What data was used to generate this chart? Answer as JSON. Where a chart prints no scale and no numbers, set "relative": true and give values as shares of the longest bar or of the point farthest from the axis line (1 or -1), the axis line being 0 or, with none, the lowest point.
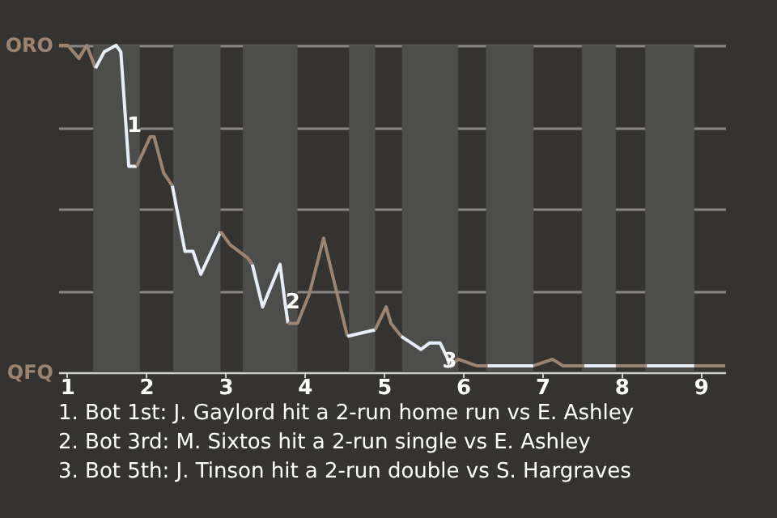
{
  "chart_data": {
    "type": "line",
    "relative": true,
    "xlim": [
      0.89,
      9.31
    ],
    "xticks": [
      1,
      2,
      3,
      4,
      5,
      6,
      7,
      8,
      9
    ],
    "grid": "y",
    "series": [
      {
        "color": "#9c8470",
        "x": [
          0.9,
          1.01,
          1.15,
          1.25,
          1.36
        ],
        "values": [
          1,
          1,
          0.96,
          1,
          0.93
        ]
      },
      {
        "color": "#e8eef8",
        "x": [
          1.36,
          1.47,
          1.62,
          1.68,
          1.78,
          1.88
        ],
        "values": [
          0.93,
          0.98,
          1,
          0.98,
          0.63,
          0.63
        ]
      },
      {
        "color": "#9c8470",
        "x": [
          1.88,
          2.05,
          2.1,
          2.22,
          2.33
        ],
        "values": [
          0.63,
          0.72,
          0.72,
          0.61,
          0.57
        ]
      },
      {
        "color": "#e8eef8",
        "x": [
          2.33,
          2.49,
          2.59,
          2.69,
          2.94
        ],
        "values": [
          0.57,
          0.37,
          0.37,
          0.3,
          0.43
        ]
      },
      {
        "color": "#9c8470",
        "x": [
          2.94,
          3.06,
          3.28,
          3.34
        ],
        "values": [
          0.43,
          0.39,
          0.35,
          0.33
        ]
      },
      {
        "color": "#e8eef8",
        "x": [
          3.34,
          3.47,
          3.69,
          3.76,
          3.79
        ],
        "values": [
          0.33,
          0.2,
          0.33,
          0.2,
          0.15
        ]
      },
      {
        "color": "#9c8470",
        "x": [
          3.79,
          3.91,
          4.06,
          4.24,
          4.54
        ],
        "values": [
          0.15,
          0.15,
          0.24,
          0.41,
          0.11
        ]
      },
      {
        "color": "#e8eef8",
        "x": [
          4.54,
          4.89
        ],
        "values": [
          0.11,
          0.13
        ]
      },
      {
        "color": "#9c8470",
        "x": [
          4.89,
          5.03,
          5.09,
          5.22
        ],
        "values": [
          0.13,
          0.2,
          0.15,
          0.11
        ]
      },
      {
        "color": "#e8eef8",
        "x": [
          5.22,
          5.47,
          5.58,
          5.71,
          5.81,
          5.83
        ],
        "values": [
          0.11,
          0.07,
          0.09,
          0.09,
          0.04,
          0.02
        ]
      },
      {
        "color": "#9c8470",
        "x": [
          5.83,
          5.94,
          6.17,
          6.31
        ],
        "values": [
          0.02,
          0.04,
          0.02,
          0.02
        ]
      },
      {
        "color": "#e8eef8",
        "x": [
          6.31,
          6.89
        ],
        "values": [
          0.02,
          0.02
        ]
      },
      {
        "color": "#9c8470",
        "x": [
          6.89,
          7.13,
          7.26,
          7.53
        ],
        "values": [
          0.02,
          0.04,
          0.02,
          0.02
        ]
      },
      {
        "color": "#e8eef8",
        "x": [
          7.53,
          7.93
        ],
        "values": [
          0.02,
          0.02
        ]
      },
      {
        "color": "#9c8470",
        "x": [
          7.93,
          8.06,
          8.32
        ],
        "values": [
          0.02,
          0.02,
          0.02
        ]
      },
      {
        "color": "#e8eef8",
        "x": [
          8.32,
          8.92
        ],
        "values": [
          0.02,
          0.02
        ]
      },
      {
        "color": "#9c8470",
        "x": [
          8.92,
          9.31
        ],
        "values": [
          0.02,
          0.02
        ]
      }
    ],
    "bands": [
      {
        "axis": "x",
        "from": 1.33,
        "to": 1.92,
        "color": "#4d4d4c"
      },
      {
        "axis": "x",
        "from": 2.34,
        "to": 2.94,
        "color": "#4d4d4c"
      },
      {
        "axis": "x",
        "from": 3.22,
        "to": 3.91,
        "color": "#4d4d4c"
      },
      {
        "axis": "x",
        "from": 4.56,
        "to": 4.89,
        "color": "#4d4d4c"
      },
      {
        "axis": "x",
        "from": 5.23,
        "to": 5.94,
        "color": "#4d4d4c"
      },
      {
        "axis": "x",
        "from": 6.29,
        "to": 6.89,
        "color": "#4d4d4c"
      },
      {
        "axis": "x",
        "from": 7.5,
        "to": 7.93,
        "color": "#4d4d4c"
      },
      {
        "axis": "x",
        "from": 8.3,
        "to": 8.92,
        "color": "#4d4d4c"
      }
    ],
    "annotations": [
      "ORO",
      "QFQ",
      {
        "text": "1",
        "x": 1.85,
        "y": 0.74
      },
      {
        "text": "2",
        "x": 3.85,
        "y": 0.2
      },
      {
        "text": "3",
        "x": 5.83,
        "y": 0.02
      },
      "1. Bot 1st: J. Gaylord hit a 2-run home run vs E. Ashley",
      "2. Bot 3rd: M. Sixtos hit a 2-run single vs E. Ashley",
      "3. Bot 5th: J. Tinson hit a 2-run double vs S. Hargraves"
    ]
  }
}
